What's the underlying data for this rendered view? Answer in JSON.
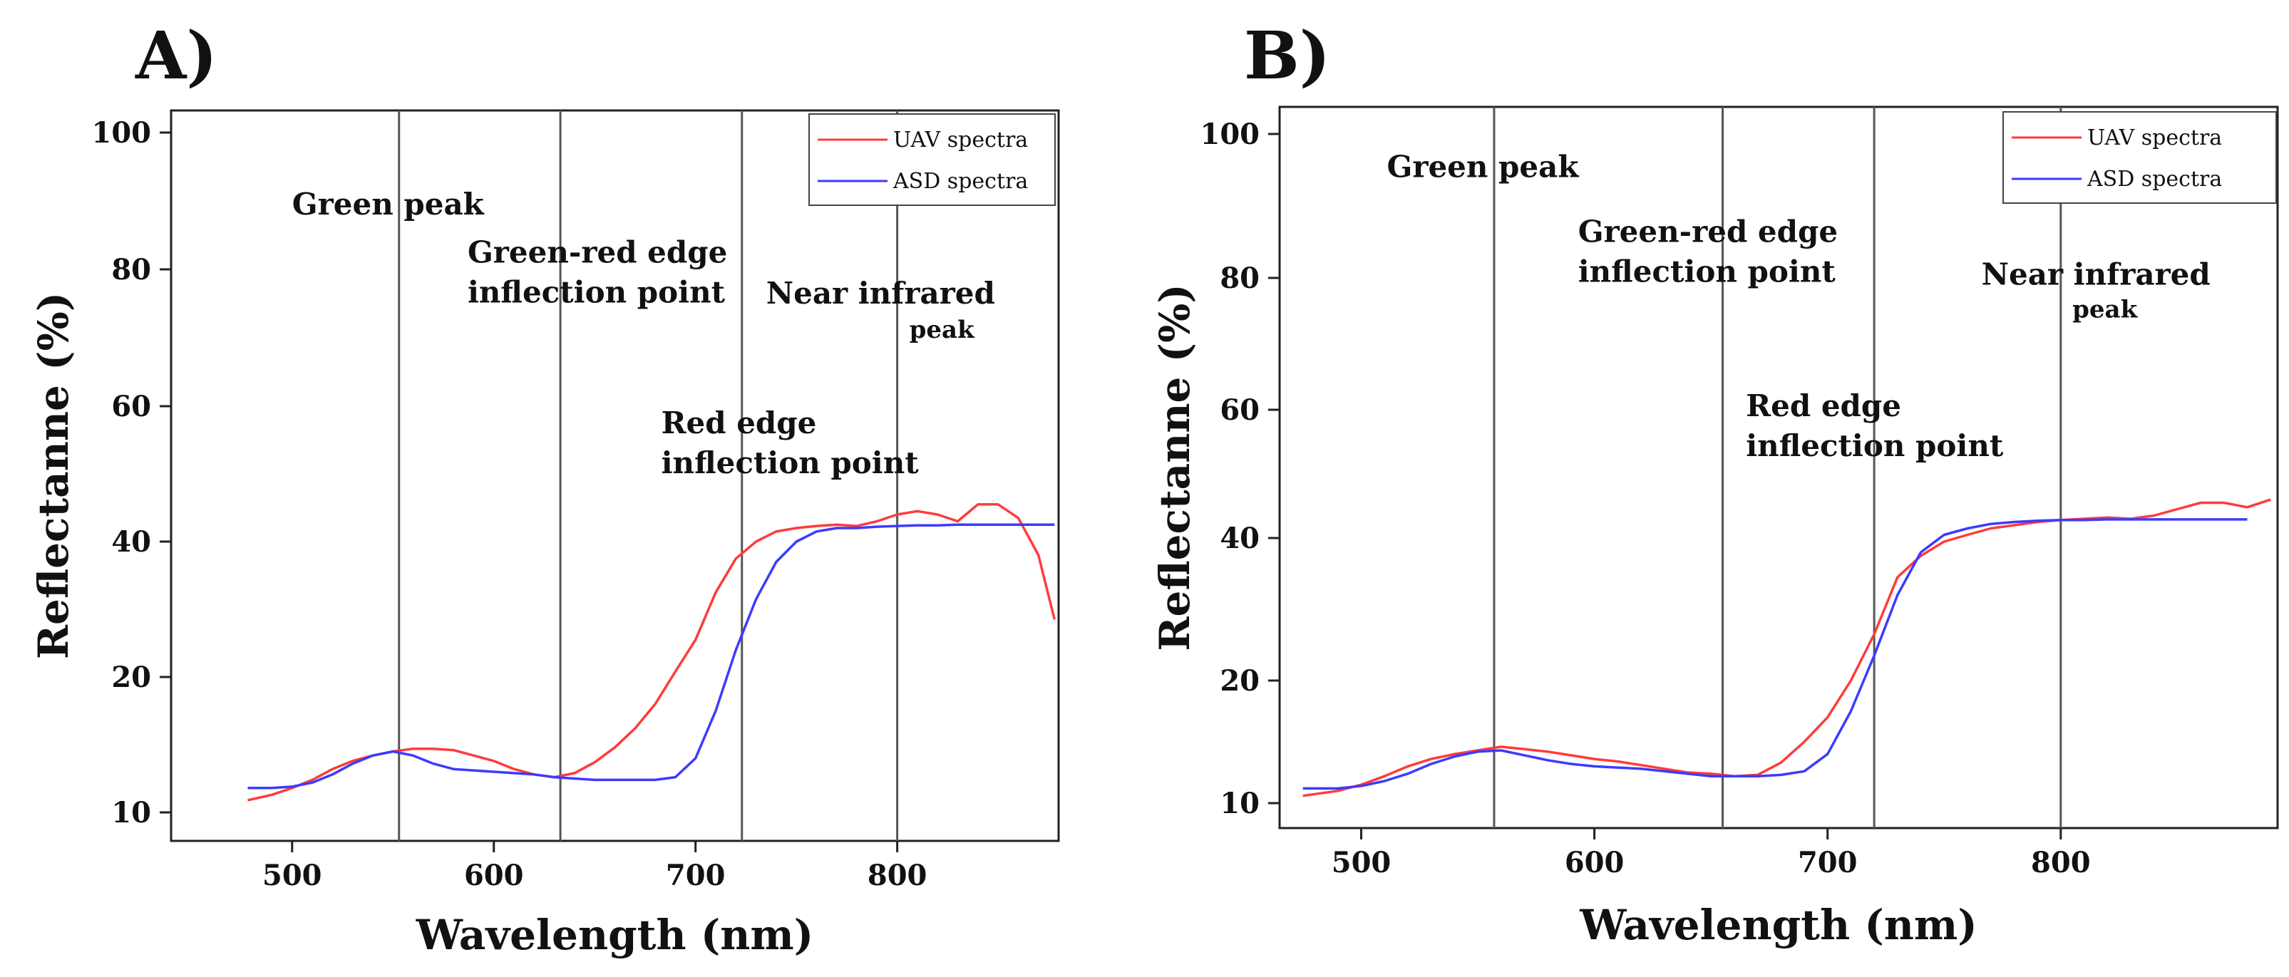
{
  "chart_data": [
    {
      "type": "line",
      "panel_label": "A)",
      "title": "",
      "xlabel": "Wavelength  (nm)",
      "ylabel": "Reflectanne (%)",
      "xlim": [
        440,
        880
      ],
      "ylim": [
        8,
        103
      ],
      "xticks": [
        500,
        600,
        700,
        800
      ],
      "yticks": [
        10,
        20,
        40,
        60,
        80,
        100
      ],
      "ytick_labels": [
        "10",
        "20",
        "40",
        "60",
        "80",
        "100"
      ],
      "legend_position": "top-right",
      "vlines": [
        553,
        633,
        723,
        800
      ],
      "annotations": [
        {
          "lines": [
            "Green peak"
          ],
          "x": 500,
          "y": 88,
          "style": "normal"
        },
        {
          "lines": [
            "Green-red edge",
            "inflection point"
          ],
          "x": 587,
          "y": 81,
          "style": "normal"
        },
        {
          "lines": [
            "Near infrared"
          ],
          "x": 735,
          "y": 75,
          "style": "normal"
        },
        {
          "lines": [
            "peak"
          ],
          "x": 806,
          "y": 70,
          "style": "small"
        },
        {
          "lines": [
            "Red edge",
            "inflection point"
          ],
          "x": 683,
          "y": 56,
          "style": "normal"
        }
      ],
      "series": [
        {
          "name": "UAV spectra",
          "color": "#ff3b3b",
          "x": [
            478,
            490,
            500,
            510,
            520,
            530,
            540,
            550,
            560,
            570,
            580,
            590,
            600,
            610,
            620,
            630,
            640,
            650,
            660,
            670,
            680,
            690,
            700,
            710,
            720,
            730,
            740,
            750,
            760,
            770,
            780,
            790,
            800,
            810,
            820,
            830,
            840,
            850,
            860,
            870,
            878
          ],
          "y": [
            10.9,
            11.3,
            11.8,
            12.4,
            13.2,
            13.8,
            14.2,
            14.5,
            14.7,
            14.7,
            14.6,
            14.2,
            13.8,
            13.2,
            12.8,
            12.6,
            12.9,
            13.7,
            14.8,
            16.2,
            18.0,
            20.8,
            25.5,
            32.5,
            37.5,
            40.0,
            41.5,
            42.0,
            42.3,
            42.5,
            42.3,
            43.0,
            44.0,
            44.5,
            44.0,
            43.0,
            45.5,
            45.5,
            43.5,
            38.0,
            28.5
          ]
        },
        {
          "name": "ASD spectra",
          "color": "#3b3bff",
          "x": [
            478,
            490,
            500,
            510,
            520,
            530,
            540,
            550,
            560,
            570,
            580,
            590,
            600,
            610,
            620,
            630,
            640,
            650,
            660,
            670,
            680,
            690,
            700,
            710,
            720,
            730,
            740,
            750,
            760,
            770,
            780,
            790,
            800,
            810,
            820,
            830,
            840,
            850,
            860,
            870,
            878
          ],
          "y": [
            11.8,
            11.8,
            11.9,
            12.2,
            12.8,
            13.6,
            14.2,
            14.5,
            14.2,
            13.6,
            13.2,
            13.1,
            13.0,
            12.9,
            12.8,
            12.6,
            12.5,
            12.4,
            12.4,
            12.4,
            12.4,
            12.6,
            14.0,
            17.5,
            24.0,
            31.5,
            37.0,
            40.0,
            41.5,
            42.0,
            42.0,
            42.2,
            42.3,
            42.4,
            42.4,
            42.5,
            42.5,
            42.5,
            42.5,
            42.5,
            42.5
          ]
        }
      ]
    },
    {
      "type": "line",
      "panel_label": "B)",
      "title": "",
      "xlabel": "Wavelength  (nm)",
      "ylabel": "Reflectanne (%)",
      "xlim": [
        465,
        893
      ],
      "ylim": [
        8,
        103
      ],
      "xticks": [
        500,
        600,
        700,
        800
      ],
      "yticks": [
        10,
        20,
        40,
        60,
        80,
        100
      ],
      "ytick_labels": [
        "10",
        "20",
        "40",
        "60",
        "80",
        "100"
      ],
      "legend_position": "top-right",
      "vlines": [
        557,
        655,
        720,
        800
      ],
      "annotations": [
        {
          "lines": [
            "Green peak"
          ],
          "x": 511,
          "y": 94,
          "style": "normal"
        },
        {
          "lines": [
            "Green-red edge",
            "inflection point"
          ],
          "x": 593,
          "y": 85,
          "style": "normal"
        },
        {
          "lines": [
            "Near infrared"
          ],
          "x": 766,
          "y": 79,
          "style": "normal"
        },
        {
          "lines": [
            "peak"
          ],
          "x": 805,
          "y": 74,
          "style": "small"
        },
        {
          "lines": [
            "Red edge",
            "inflection point"
          ],
          "x": 665,
          "y": 59,
          "style": "normal"
        }
      ],
      "series": [
        {
          "name": "UAV spectra",
          "color": "#ff3b3b",
          "x": [
            475,
            490,
            500,
            510,
            520,
            530,
            540,
            550,
            560,
            570,
            580,
            590,
            600,
            610,
            620,
            630,
            640,
            650,
            660,
            670,
            680,
            690,
            700,
            710,
            720,
            730,
            740,
            750,
            760,
            770,
            780,
            790,
            800,
            810,
            820,
            830,
            840,
            850,
            860,
            870,
            880,
            890
          ],
          "y": [
            10.6,
            11.0,
            11.5,
            12.2,
            13.0,
            13.6,
            14.0,
            14.3,
            14.6,
            14.4,
            14.2,
            13.9,
            13.6,
            13.4,
            13.1,
            12.8,
            12.5,
            12.4,
            12.2,
            12.3,
            13.3,
            15.0,
            17.0,
            20.0,
            26.5,
            34.5,
            37.5,
            39.5,
            40.5,
            41.5,
            42.0,
            42.5,
            42.8,
            43.0,
            43.2,
            43.0,
            43.5,
            44.5,
            45.5,
            45.5,
            44.8,
            46.0
          ]
        },
        {
          "name": "ASD spectra",
          "color": "#3b3bff",
          "x": [
            475,
            490,
            500,
            510,
            520,
            530,
            540,
            550,
            560,
            570,
            580,
            590,
            600,
            610,
            620,
            630,
            640,
            650,
            660,
            670,
            680,
            690,
            700,
            710,
            720,
            730,
            740,
            750,
            760,
            770,
            780,
            790,
            800,
            810,
            820,
            830,
            840,
            850,
            860,
            870,
            880
          ],
          "y": [
            11.2,
            11.2,
            11.4,
            11.8,
            12.4,
            13.2,
            13.8,
            14.2,
            14.3,
            13.9,
            13.5,
            13.2,
            13.0,
            12.9,
            12.8,
            12.6,
            12.4,
            12.2,
            12.2,
            12.2,
            12.3,
            12.6,
            14.0,
            17.5,
            23.5,
            32.0,
            38.0,
            40.5,
            41.5,
            42.2,
            42.5,
            42.7,
            42.8,
            42.8,
            42.9,
            42.9,
            42.9,
            42.9,
            42.9,
            42.9,
            42.9
          ]
        }
      ]
    }
  ]
}
